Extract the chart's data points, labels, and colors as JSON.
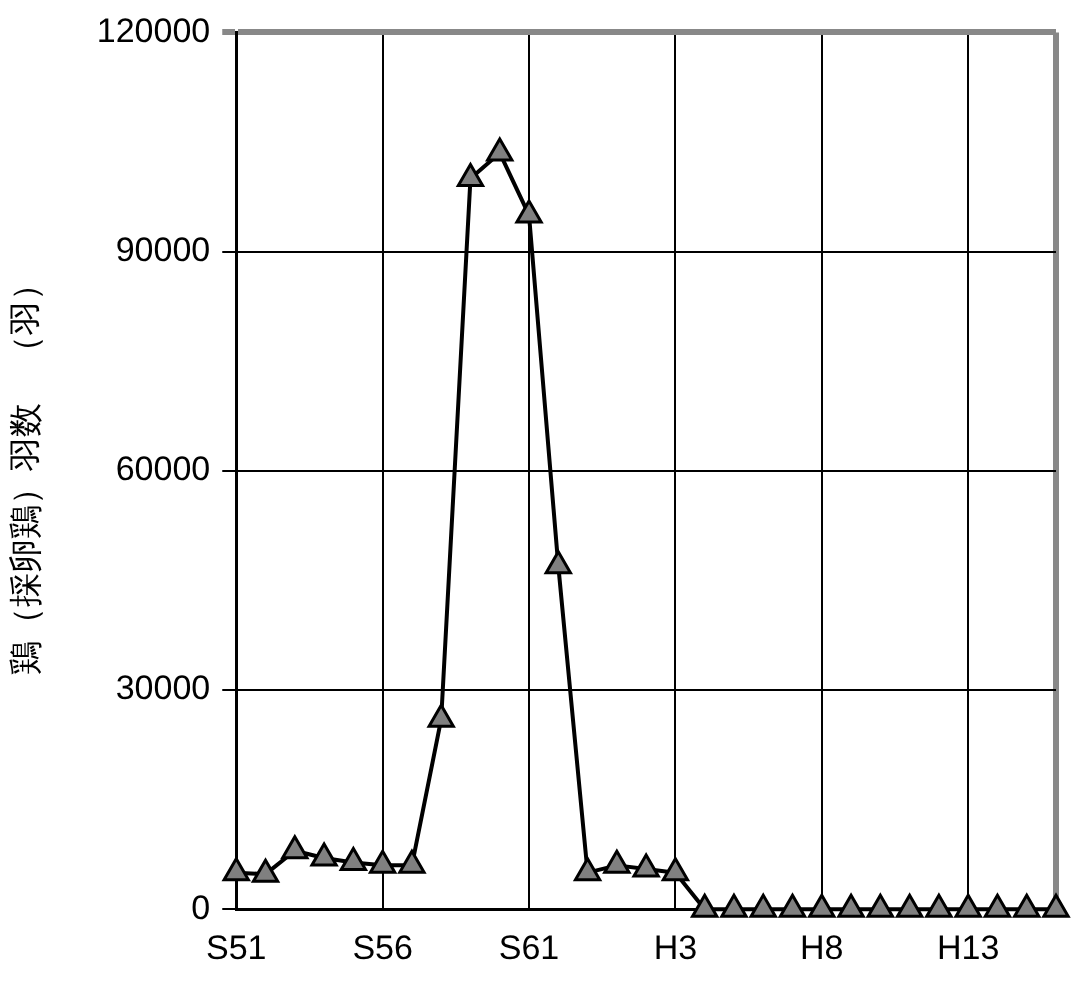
{
  "chart_data": {
    "type": "line",
    "ylabel": "鶏（採卵鶏）羽数　（羽）",
    "categories": [
      "S51",
      null,
      null,
      null,
      null,
      "S56",
      null,
      null,
      null,
      null,
      "S61",
      null,
      null,
      null,
      null,
      "H3",
      null,
      null,
      null,
      null,
      "H8",
      null,
      null,
      null,
      null,
      "H13",
      null,
      null,
      null
    ],
    "series": [
      {
        "color": "#808080",
        "values": [
          5000,
          4800,
          8000,
          7000,
          6400,
          6000,
          6000,
          26000,
          100000,
          103500,
          95000,
          47000,
          5000,
          6000,
          5500,
          5000,
          0,
          0,
          0,
          0,
          0,
          0,
          0,
          0,
          0,
          0,
          0,
          0,
          0
        ]
      }
    ],
    "ylim": [
      0,
      120000
    ],
    "yticks": [
      0,
      30000,
      60000,
      90000,
      120000
    ],
    "grid": true,
    "legend": false,
    "marker": "triangle",
    "line_style": "solid"
  }
}
